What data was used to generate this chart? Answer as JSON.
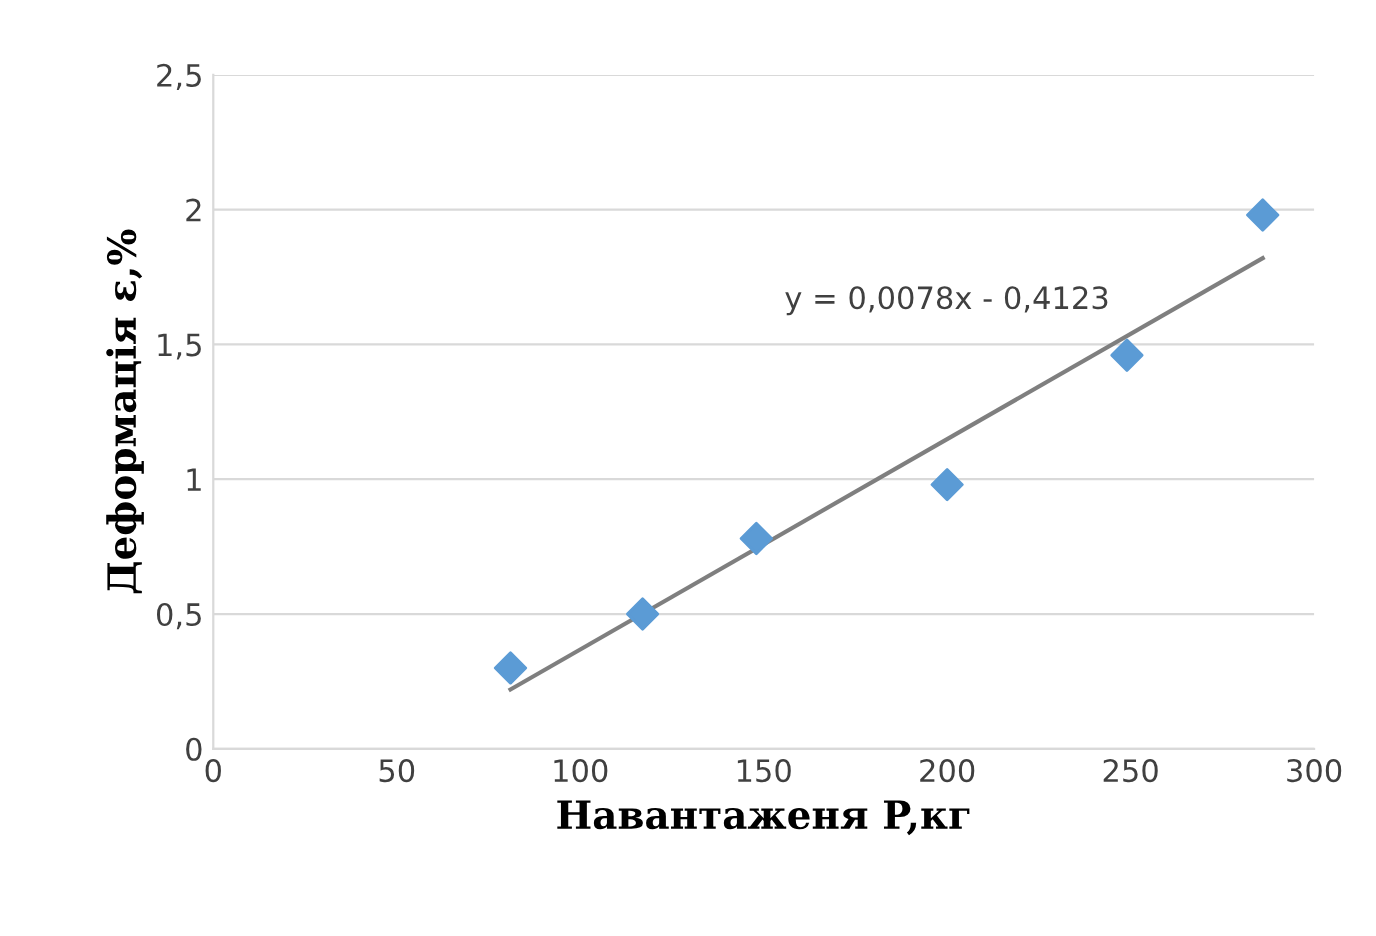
{
  "chart_data": {
    "type": "scatter",
    "xlabel": "Навантаженя P,кг",
    "ylabel": "Деформація ε,%",
    "xlim": [
      0,
      300
    ],
    "xticks": [
      0,
      50,
      100,
      150,
      200,
      250,
      300
    ],
    "ylim": [
      0,
      2.5
    ],
    "yticks": [
      0,
      {
        "value": 0.5,
        "label": "0,5"
      },
      1,
      {
        "value": 1.5,
        "label": "1,5"
      },
      2,
      {
        "value": 2.5,
        "label": "2,5"
      }
    ],
    "grid": "y",
    "series": [
      {
        "marker": "diamond",
        "color": "#5b9bd5",
        "x": [
          81,
          117,
          148,
          200,
          249,
          286
        ],
        "values": [
          0.3,
          0.5,
          0.78,
          0.98,
          1.46,
          1.98
        ]
      },
      {
        "type": "line",
        "color": "#7f7f7f",
        "x": [
          81,
          286
        ],
        "values": [
          0.22,
          1.82
        ]
      }
    ],
    "annotations": [
      "y = 0,0078x - 0,4123"
    ]
  }
}
